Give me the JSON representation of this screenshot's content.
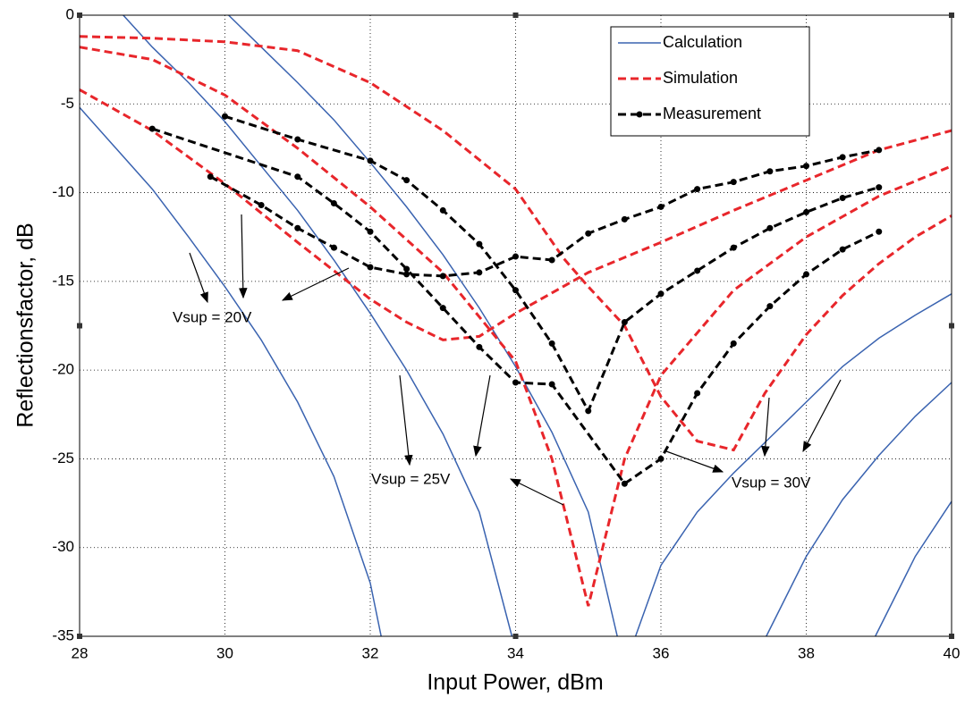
{
  "chart_data": {
    "type": "line",
    "xlabel": "Input Power, dBm",
    "ylabel": "Reflectionsfactor, dB",
    "xlim": [
      28,
      40
    ],
    "ylim": [
      -35,
      0
    ],
    "xticks": [
      28,
      30,
      32,
      34,
      36,
      38,
      40
    ],
    "yticks": [
      -35,
      -30,
      -25,
      -20,
      -15,
      -10,
      -5,
      0
    ],
    "grid": true,
    "legend": "upper right",
    "annotations": [
      "Vsup = 20V",
      "Vsup = 25V",
      "Vsup = 30V"
    ],
    "series": [
      {
        "name": "Calculation",
        "color": "#3a63b0",
        "dash": "solid",
        "marker": "none",
        "lines": [
          {
            "x": [
              28,
              28.5,
              29,
              29.5,
              30,
              30.5,
              31,
              31.5,
              32,
              32.15
            ],
            "values": [
              -5.2,
              -7.5,
              -9.8,
              -12.5,
              -15.3,
              -18.3,
              -21.8,
              -26,
              -32,
              -35
            ]
          },
          {
            "x": [
              28.6,
              29,
              29.5,
              30,
              30.5,
              31,
              31.5,
              32,
              32.5,
              33,
              33.5,
              33.95
            ],
            "values": [
              0,
              -1.8,
              -3.8,
              -6,
              -8.5,
              -11,
              -13.8,
              -16.8,
              -20,
              -23.6,
              -28,
              -35
            ]
          },
          {
            "x": [
              30.05,
              30.5,
              31,
              31.5,
              32,
              32.5,
              33,
              33.5,
              34,
              34.5,
              35,
              35.4
            ],
            "values": [
              0,
              -1.8,
              -3.8,
              -5.9,
              -8.3,
              -10.8,
              -13.5,
              -16.5,
              -19.8,
              -23.5,
              -28,
              -35
            ]
          },
          {
            "x": [
              35.65,
              36,
              36.5,
              37,
              37.5,
              38,
              38.5,
              39,
              39.5,
              40
            ],
            "values": [
              -35,
              -31,
              -28,
              -25.8,
              -23.8,
              -21.8,
              -19.8,
              -18.2,
              -16.9,
              -15.7
            ]
          },
          {
            "x": [
              37.45,
              38,
              38.5,
              39,
              39.5,
              40
            ],
            "values": [
              -35,
              -30.5,
              -27.3,
              -24.8,
              -22.6,
              -20.7
            ]
          },
          {
            "x": [
              38.95,
              39.5,
              40
            ],
            "values": [
              -35,
              -30.5,
              -27.4
            ]
          }
        ]
      },
      {
        "name": "Simulation",
        "color": "#e8262b",
        "dash": "dashed",
        "marker": "none",
        "lines": [
          {
            "x": [
              28,
              29,
              30,
              31,
              32,
              33,
              34,
              34.66,
              35,
              35.5,
              36,
              36.5,
              37,
              37.43,
              38,
              38.5,
              39,
              39.5,
              40
            ],
            "values": [
              -1.2,
              -1.3,
              -1.5,
              -2,
              -3.8,
              -6.5,
              -9.8,
              -13.7,
              -15.3,
              -17.5,
              -21.5,
              -24,
              -24.5,
              -21.3,
              -18,
              -15.8,
              -14,
              -12.5,
              -11.3
            ]
          },
          {
            "x": [
              28,
              29,
              30,
              31,
              32,
              33,
              34,
              34.5,
              35,
              35.5,
              36,
              37,
              38,
              39,
              40
            ],
            "values": [
              -1.8,
              -2.5,
              -4.5,
              -7.5,
              -10.8,
              -14.5,
              -19.5,
              -25,
              -33.3,
              -25,
              -20.3,
              -15.5,
              -12.5,
              -10.2,
              -8.5
            ]
          },
          {
            "x": [
              28,
              29,
              30,
              31,
              32,
              32.5,
              33,
              33.5,
              34,
              35,
              36,
              37,
              38,
              39,
              40
            ],
            "values": [
              -4.2,
              -6.5,
              -9.5,
              -12.8,
              -16,
              -17.3,
              -18.3,
              -18.1,
              -16.8,
              -14.5,
              -12.8,
              -11,
              -9.3,
              -7.6,
              -6.5
            ]
          }
        ]
      },
      {
        "name": "Measurement",
        "color": "#000000",
        "dash": "dashed",
        "marker": "circle",
        "lines": [
          {
            "x": [
              30,
              31,
              32,
              32.5,
              33,
              33.5,
              34,
              34.5,
              35,
              35.5,
              36,
              36.5,
              37,
              37.5,
              38,
              38.5,
              39
            ],
            "values": [
              -5.7,
              -7,
              -8.2,
              -9.3,
              -11,
              -12.9,
              -15.5,
              -18.5,
              -22.3,
              -17.3,
              -15.7,
              -14.4,
              -13.1,
              -12,
              -11.1,
              -10.3,
              -9.7
            ]
          },
          {
            "x": [
              29,
              31,
              31.5,
              32,
              32.5,
              33,
              33.5,
              34,
              34.5,
              35.5,
              36,
              36.5,
              37,
              37.5,
              38,
              38.5,
              39
            ],
            "values": [
              -6.4,
              -9.1,
              -10.6,
              -12.2,
              -14.3,
              -16.5,
              -18.7,
              -20.7,
              -20.8,
              -26.4,
              -25,
              -21.3,
              -18.5,
              -16.4,
              -14.6,
              -13.2,
              -12.2
            ]
          },
          {
            "x": [
              29.8,
              30.5,
              31,
              31.5,
              32,
              32.5,
              33,
              33.5,
              34,
              34.5,
              35,
              35.5,
              36,
              36.5,
              37,
              37.5,
              38,
              38.5,
              39
            ],
            "values": [
              -9.1,
              -10.7,
              -12,
              -13.1,
              -14.2,
              -14.6,
              -14.7,
              -14.5,
              -13.6,
              -13.8,
              -12.3,
              -11.5,
              -10.8,
              -9.8,
              -9.4,
              -8.8,
              -8.5,
              -8,
              -7.6
            ]
          }
        ]
      }
    ]
  }
}
